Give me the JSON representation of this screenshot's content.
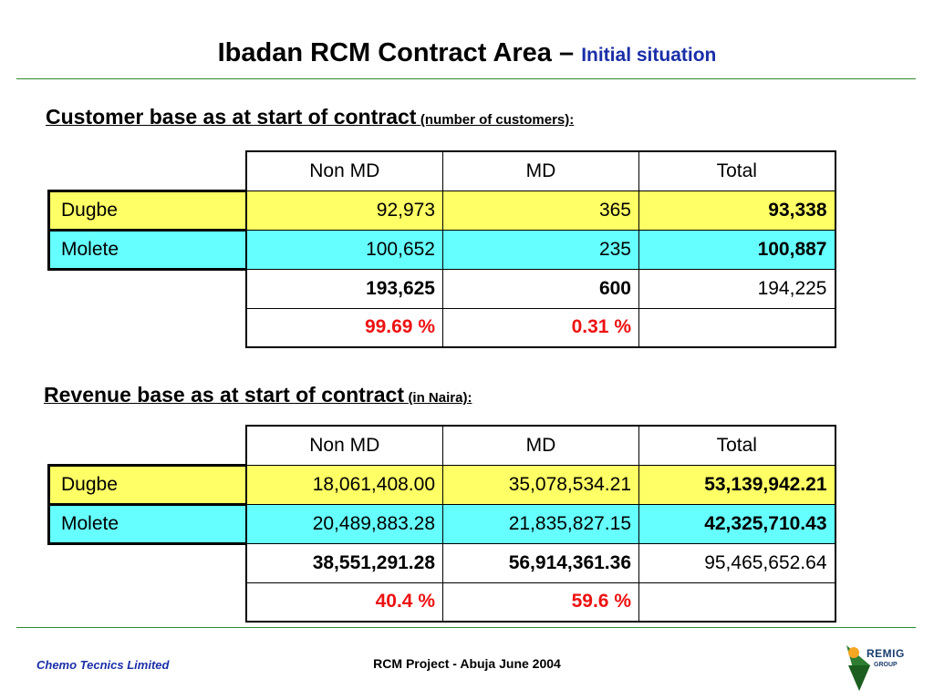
{
  "title": {
    "main": "Ibadan RCM Contract Area – ",
    "sub": "Initial situation"
  },
  "customer": {
    "heading": "Customer base as at start of contract",
    "heading_small": "(number of customers):",
    "headers": [
      "Non MD",
      "MD",
      "Total"
    ],
    "rows": [
      {
        "label": "Dugbe",
        "non_md": "92,973",
        "md": "365",
        "total": "93,338"
      },
      {
        "label": "Molete",
        "non_md": "100,652",
        "md": "235",
        "total": "100,887"
      }
    ],
    "totals": {
      "non_md": "193,625",
      "md": "600",
      "total": "194,225"
    },
    "shares": {
      "non_md": "99.69 %",
      "md": "0.31 %"
    }
  },
  "revenue": {
    "heading": "Revenue base as at start of contract",
    "heading_small": "(in Naira):",
    "headers": [
      "Non MD",
      "MD",
      "Total"
    ],
    "rows": [
      {
        "label": "Dugbe",
        "non_md": "18,061,408.00",
        "md": "35,078,534.21",
        "total": "53,139,942.21"
      },
      {
        "label": "Molete",
        "non_md": "20,489,883.28",
        "md": "21,835,827.15",
        "total": "42,325,710.43"
      }
    ],
    "totals": {
      "non_md": "38,551,291.28",
      "md": "56,914,361.36",
      "total": "95,465,652.64"
    },
    "shares": {
      "non_md": "40.4 %",
      "md": "59.6 %"
    }
  },
  "footer": {
    "left": "Chemo Tecnics Limited",
    "center": "RCM Project - Abuja June 2004",
    "logo_line1": "REMIG",
    "logo_line2": "GROUP"
  },
  "colors": {
    "title_accent": "#1a2ea8",
    "row1": "#ffff66",
    "row2": "#66ffff",
    "percent": "#ee1111",
    "rule": "#2e8b2e"
  }
}
